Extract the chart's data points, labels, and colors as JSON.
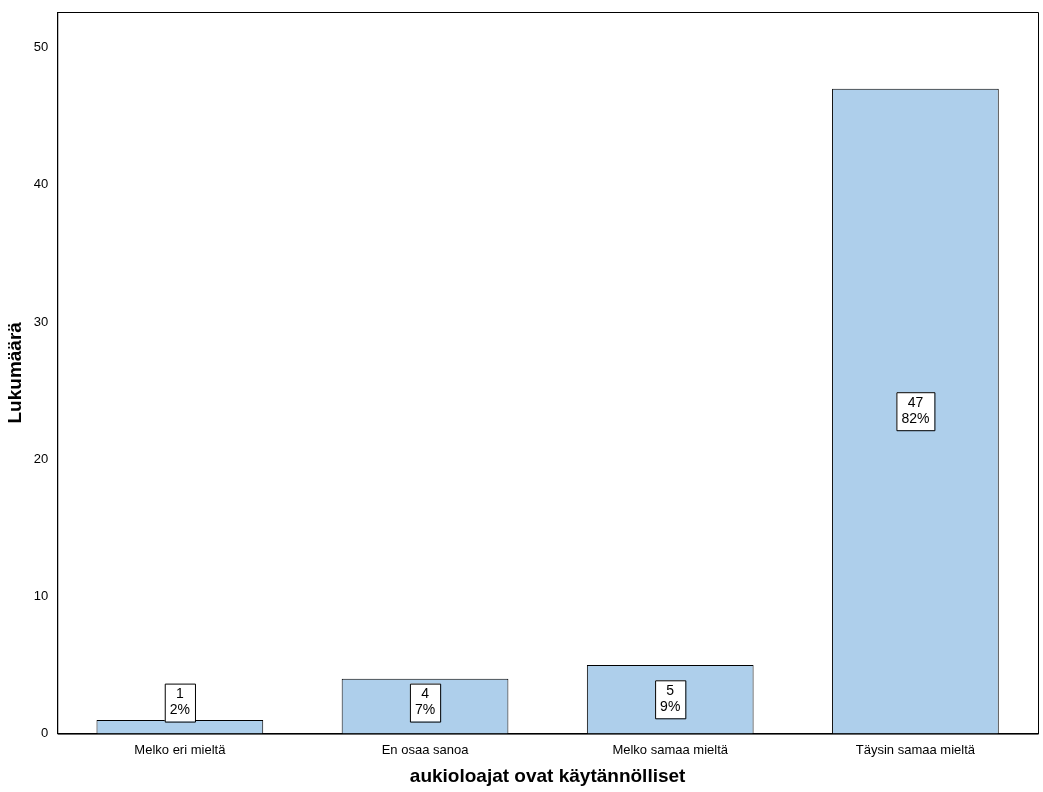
{
  "chart_data": {
    "type": "bar",
    "xlabel": "aukioloajat ovat käytännölliset",
    "ylabel": "Lukumäärä",
    "categories": [
      "Melko eri mieltä",
      "En osaa sanoa",
      "Melko samaa mieltä",
      "Täysin samaa mieltä"
    ],
    "values": [
      1,
      4,
      5,
      47
    ],
    "color": "#aecfeb",
    "value_labels": [
      "1\n2%",
      "4\n7%",
      "5\n9%",
      "47\n82%"
    ],
    "ylim": [
      0,
      52.6
    ],
    "yticks": [
      0,
      10,
      20,
      30,
      40,
      50
    ],
    "grid": false,
    "legend": false
  }
}
